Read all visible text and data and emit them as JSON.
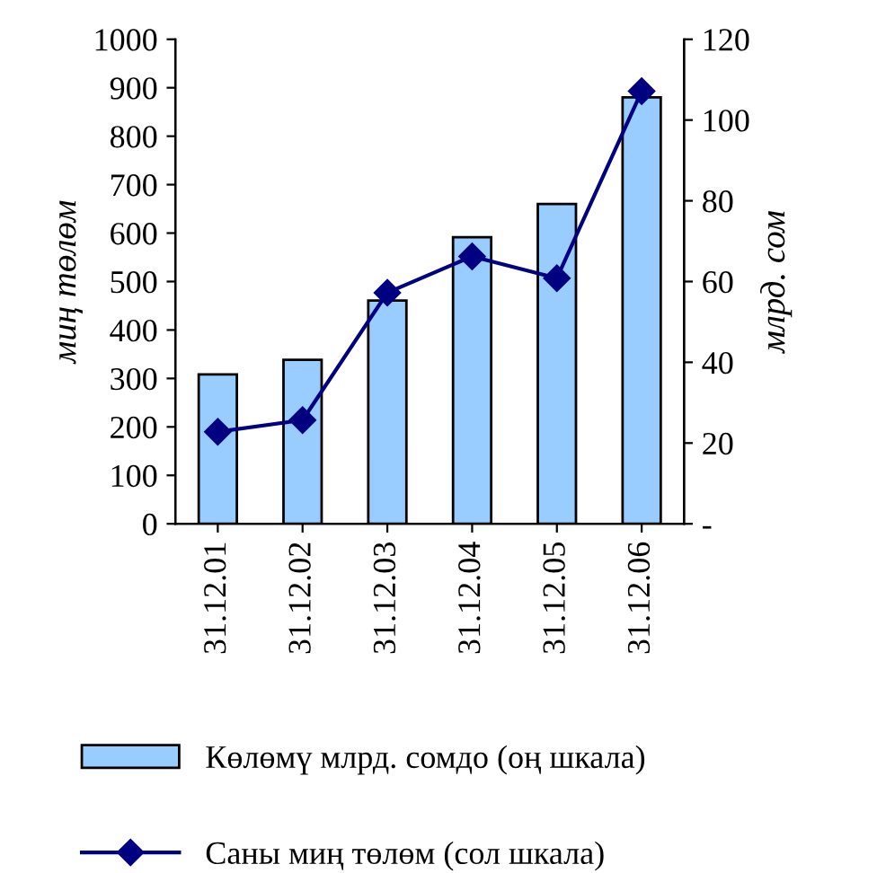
{
  "chart_data": {
    "type": "bar",
    "categories": [
      "31.12.01",
      "31.12.02",
      "31.12.03",
      "31.12.04",
      "31.12.05",
      "31.12.06"
    ],
    "ylabel": "миң төлөм",
    "y2label": "млрд. сом",
    "series": [
      {
        "name": "Көлөмү млрд. сомдо (оң шкала)",
        "axis": "y2",
        "color": "#99ccff",
        "values": [
          37,
          40.6,
          55.3,
          71,
          79.2,
          105.6
        ]
      },
      {
        "name": "Саны миң төлөм (сол шкала)",
        "type": "line",
        "color": "#000080",
        "marker": "diamond",
        "values": [
          190,
          214,
          477,
          552,
          507,
          893
        ]
      }
    ],
    "ylim": [
      0,
      1000
    ],
    "yticks": [
      0,
      100,
      200,
      300,
      400,
      500,
      600,
      700,
      800,
      900,
      1000
    ],
    "y2lim": [
      0,
      120
    ],
    "y2ticks": [
      {
        "value": 0,
        "label": "-"
      },
      20,
      40,
      60,
      80,
      100,
      120
    ],
    "grid": false,
    "legend": "bottom"
  }
}
